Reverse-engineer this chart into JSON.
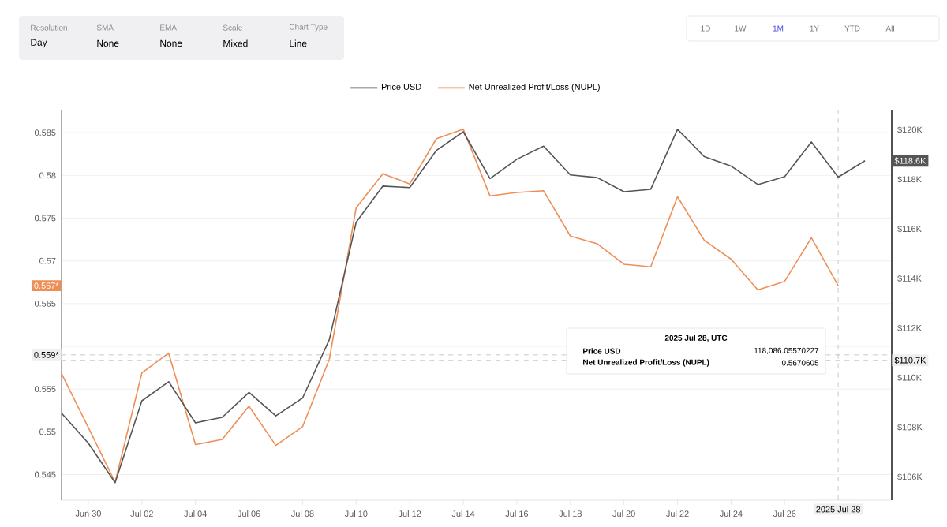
{
  "chart_data": {
    "type": "line",
    "x": [
      "2025-06-29",
      "2025-06-30",
      "2025-07-01",
      "2025-07-02",
      "2025-07-03",
      "2025-07-04",
      "2025-07-05",
      "2025-07-06",
      "2025-07-07",
      "2025-07-08",
      "2025-07-09",
      "2025-07-10",
      "2025-07-11",
      "2025-07-12",
      "2025-07-13",
      "2025-07-14",
      "2025-07-15",
      "2025-07-16",
      "2025-07-17",
      "2025-07-18",
      "2025-07-19",
      "2025-07-20",
      "2025-07-21",
      "2025-07-22",
      "2025-07-23",
      "2025-07-24",
      "2025-07-25",
      "2025-07-26",
      "2025-07-27",
      "2025-07-28",
      "2025-07-29"
    ],
    "series": [
      {
        "name": "Price USD",
        "color": "#555555",
        "axis": "y2",
        "values": [
          108570,
          107360,
          105770,
          109070,
          109840,
          108180,
          108400,
          109410,
          108460,
          109180,
          111540,
          116270,
          117730,
          117670,
          119170,
          119920,
          118030,
          118810,
          119340,
          118180,
          118070,
          117500,
          117600,
          120020,
          118920,
          118540,
          117790,
          118110,
          119510,
          118090,
          118750
        ]
      },
      {
        "name": "Net Unrealized Profit/Loss (NUPL)",
        "color": "#ee8e57",
        "values": [
          0.5568,
          0.5505,
          0.5441,
          0.5569,
          0.5592,
          0.5485,
          0.5491,
          0.553,
          0.5484,
          0.5506,
          0.5585,
          0.5762,
          0.5802,
          0.579,
          0.5843,
          0.5854,
          0.5776,
          0.578,
          0.5782,
          0.5729,
          0.572,
          0.5696,
          0.5693,
          0.5775,
          0.5724,
          0.5702,
          0.5666,
          0.5676,
          0.5727,
          0.5671,
          null
        ]
      }
    ],
    "xlim": [
      "2025-06-29",
      "2025-07-30"
    ],
    "xticks": [
      {
        "value": "2025-06-30",
        "label": "Jun 30"
      },
      {
        "value": "2025-07-02",
        "label": "Jul 02"
      },
      {
        "value": "2025-07-04",
        "label": "Jul 04"
      },
      {
        "value": "2025-07-06",
        "label": "Jul 06"
      },
      {
        "value": "2025-07-08",
        "label": "Jul 08"
      },
      {
        "value": "2025-07-10",
        "label": "Jul 10"
      },
      {
        "value": "2025-07-12",
        "label": "Jul 12"
      },
      {
        "value": "2025-07-14",
        "label": "Jul 14"
      },
      {
        "value": "2025-07-16",
        "label": "Jul 16"
      },
      {
        "value": "2025-07-18",
        "label": "Jul 18"
      },
      {
        "value": "2025-07-20",
        "label": "Jul 20"
      },
      {
        "value": "2025-07-22",
        "label": "Jul 22"
      },
      {
        "value": "2025-07-24",
        "label": "Jul 24"
      },
      {
        "value": "2025-07-26",
        "label": "Jul 26"
      }
    ],
    "ylim": [
      0.542,
      0.5876
    ],
    "yticks": [
      0.545,
      0.55,
      0.555,
      {
        "value": 0.56,
        "label": null
      },
      0.565,
      0.57,
      0.575,
      0.58,
      0.585
    ],
    "y2lim": [
      105060,
      120780
    ],
    "y2ticks": [
      {
        "value": 106000,
        "label": "$106K"
      },
      {
        "value": 108000,
        "label": "$108K"
      },
      {
        "value": 110000,
        "label": "$110K"
      },
      {
        "value": 112000,
        "label": "$112K"
      },
      {
        "value": 114000,
        "label": "$114K"
      },
      {
        "value": 116000,
        "label": "$116K"
      },
      {
        "value": 118000,
        "label": "$118K"
      },
      {
        "value": 120000,
        "label": "$120K"
      }
    ],
    "grid": "y",
    "legend": "top",
    "marker": "none",
    "line_style": "solid",
    "ref_lines": [
      {
        "axis": "y",
        "value": 0.559,
        "label": "0.559*",
        "color": "#bbbbbb",
        "line_style": "dashed"
      },
      {
        "axis": "y2",
        "value": 110700,
        "label": "$110.7K",
        "color": "#bbbbbb",
        "line_style": "dashed"
      },
      {
        "axis": "x",
        "value": "2025-07-28",
        "label": "2025 Jul 28",
        "color": "#bbbbbb",
        "line_style": "dashed"
      }
    ],
    "annotations": [
      "Resolution",
      "Day",
      "SMA",
      "None",
      "EMA",
      "None",
      "Scale",
      "Mixed",
      "Chart Type",
      "Line",
      "1D",
      "1W",
      "1M",
      "1Y",
      "YTD",
      "All",
      "2025 Jul 28, UTC",
      "Price USD",
      "118,086.05570227",
      "Net Unrealized Profit/Loss (NUPL)",
      "0.5670605",
      "0.567*",
      "$118.6K"
    ]
  }
}
